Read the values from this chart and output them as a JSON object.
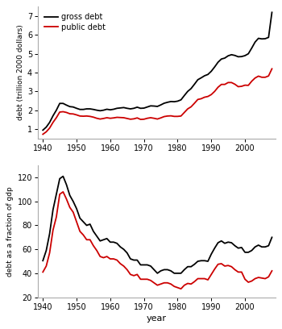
{
  "years": [
    1940,
    1941,
    1942,
    1943,
    1944,
    1945,
    1946,
    1947,
    1948,
    1949,
    1950,
    1951,
    1952,
    1953,
    1954,
    1955,
    1956,
    1957,
    1958,
    1959,
    1960,
    1961,
    1962,
    1963,
    1964,
    1965,
    1966,
    1967,
    1968,
    1969,
    1970,
    1971,
    1972,
    1973,
    1974,
    1975,
    1976,
    1977,
    1978,
    1979,
    1980,
    1981,
    1982,
    1983,
    1984,
    1985,
    1986,
    1987,
    1988,
    1989,
    1990,
    1991,
    1992,
    1993,
    1994,
    1995,
    1996,
    1997,
    1998,
    1999,
    2000,
    2001,
    2002,
    2003,
    2004,
    2005,
    2006,
    2007,
    2008
  ],
  "gross_debt": [
    0.94,
    1.1,
    1.35,
    1.7,
    2.0,
    2.36,
    2.36,
    2.27,
    2.19,
    2.17,
    2.1,
    2.04,
    2.04,
    2.07,
    2.07,
    2.04,
    2.0,
    1.97,
    2.0,
    2.05,
    2.02,
    2.05,
    2.1,
    2.12,
    2.14,
    2.1,
    2.07,
    2.1,
    2.16,
    2.1,
    2.11,
    2.17,
    2.23,
    2.22,
    2.2,
    2.28,
    2.37,
    2.42,
    2.46,
    2.45,
    2.48,
    2.55,
    2.78,
    3.0,
    3.15,
    3.38,
    3.62,
    3.72,
    3.83,
    3.9,
    4.07,
    4.3,
    4.55,
    4.72,
    4.77,
    4.89,
    4.95,
    4.91,
    4.84,
    4.85,
    4.9,
    5.0,
    5.3,
    5.62,
    5.82,
    5.79,
    5.8,
    5.87,
    7.2
  ],
  "public_debt": [
    0.72,
    0.85,
    1.05,
    1.35,
    1.6,
    1.9,
    1.92,
    1.88,
    1.81,
    1.8,
    1.75,
    1.69,
    1.68,
    1.69,
    1.67,
    1.63,
    1.57,
    1.53,
    1.56,
    1.6,
    1.57,
    1.59,
    1.62,
    1.61,
    1.6,
    1.56,
    1.52,
    1.54,
    1.59,
    1.51,
    1.52,
    1.57,
    1.6,
    1.57,
    1.53,
    1.59,
    1.66,
    1.69,
    1.7,
    1.67,
    1.67,
    1.69,
    1.88,
    2.07,
    2.18,
    2.37,
    2.57,
    2.61,
    2.69,
    2.73,
    2.83,
    3.0,
    3.22,
    3.37,
    3.37,
    3.47,
    3.47,
    3.38,
    3.25,
    3.27,
    3.33,
    3.32,
    3.54,
    3.71,
    3.81,
    3.75,
    3.75,
    3.82,
    4.2
  ],
  "gross_pct": [
    50.5,
    59.0,
    73.0,
    93.0,
    106.0,
    119.0,
    121.0,
    114.0,
    105.0,
    100.0,
    94.0,
    86.0,
    83.0,
    80.0,
    81.0,
    75.0,
    71.0,
    67.0,
    68.0,
    69.0,
    66.0,
    66.0,
    65.0,
    62.0,
    60.0,
    57.0,
    52.0,
    51.0,
    51.0,
    47.0,
    47.0,
    47.0,
    46.0,
    43.0,
    40.0,
    42.0,
    43.0,
    43.0,
    42.0,
    40.0,
    40.0,
    40.0,
    43.0,
    45.5,
    45.5,
    47.5,
    50.0,
    50.5,
    50.5,
    50.0,
    56.0,
    61.0,
    65.5,
    67.0,
    65.0,
    66.0,
    65.5,
    63.0,
    61.0,
    61.5,
    57.5,
    57.5,
    59.0,
    62.0,
    63.5,
    62.0,
    62.0,
    63.0,
    70.0
  ],
  "public_pct": [
    41.0,
    46.0,
    57.0,
    76.0,
    87.0,
    106.0,
    108.0,
    102.0,
    95.0,
    91.0,
    83.0,
    75.0,
    72.0,
    68.0,
    68.0,
    63.0,
    59.0,
    54.0,
    53.0,
    54.0,
    52.0,
    52.0,
    51.0,
    48.0,
    46.0,
    43.0,
    39.0,
    38.0,
    39.0,
    35.0,
    35.0,
    35.0,
    34.0,
    32.0,
    30.0,
    31.0,
    32.0,
    32.0,
    31.0,
    29.0,
    28.0,
    27.0,
    30.0,
    31.5,
    31.0,
    33.0,
    35.5,
    35.5,
    35.5,
    34.5,
    39.0,
    43.5,
    47.5,
    48.0,
    46.0,
    46.5,
    45.5,
    43.0,
    41.0,
    41.0,
    35.0,
    32.5,
    33.5,
    35.5,
    36.5,
    36.0,
    35.5,
    37.0,
    42.0
  ],
  "gross_color": "#000000",
  "public_color": "#cc0000",
  "plot_bg": "#ffffff",
  "fig_bg": "#ffffff",
  "ylabel1": "debt (trillion 2000 dollars)",
  "ylabel2": "debt as a fraction of gdp",
  "xlabel": "year",
  "legend_gross": "gross debt",
  "legend_public": "public debt",
  "ylim1": [
    0.5,
    7.5
  ],
  "ylim2": [
    20,
    130
  ],
  "yticks1": [
    1,
    2,
    3,
    4,
    5,
    6,
    7
  ],
  "yticks2": [
    20,
    40,
    60,
    80,
    100,
    120
  ],
  "xticks": [
    1940,
    1950,
    1960,
    1970,
    1980,
    1990,
    2000
  ],
  "xlim": [
    1938.5,
    2009
  ]
}
